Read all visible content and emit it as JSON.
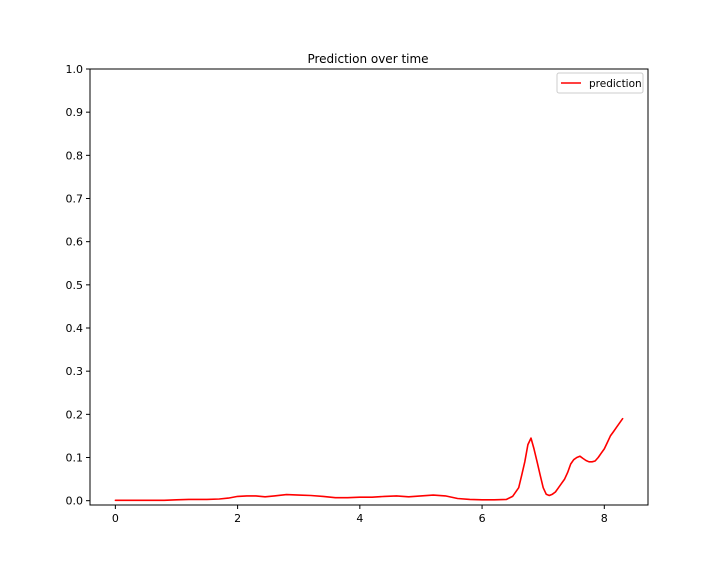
{
  "chart_data": {
    "type": "line",
    "title": "Prediction over time",
    "xlabel": "",
    "ylabel": "",
    "xlim": [
      -0.415,
      8.715
    ],
    "ylim": [
      -0.01,
      1.0
    ],
    "xticks": [
      0,
      2,
      4,
      6,
      8
    ],
    "yticks": [
      0.0,
      0.1,
      0.2,
      0.3,
      0.4,
      0.5,
      0.6,
      0.7,
      0.8,
      0.9,
      1.0
    ],
    "xtick_labels": [
      "0",
      "2",
      "4",
      "6",
      "8"
    ],
    "ytick_labels": [
      "0.0",
      "0.1",
      "0.2",
      "0.3",
      "0.4",
      "0.5",
      "0.6",
      "0.7",
      "0.8",
      "0.9",
      "1.0"
    ],
    "grid": false,
    "legend": {
      "position": "top-right"
    },
    "series": [
      {
        "name": "prediction",
        "color": "#ff0000",
        "x": [
          0,
          0.4,
          0.8,
          1.0,
          1.2,
          1.5,
          1.7,
          1.85,
          2.0,
          2.15,
          2.3,
          2.45,
          2.6,
          2.8,
          3.0,
          3.2,
          3.4,
          3.6,
          3.8,
          4.0,
          4.2,
          4.4,
          4.6,
          4.8,
          5.0,
          5.2,
          5.4,
          5.6,
          5.8,
          6.0,
          6.2,
          6.4,
          6.5,
          6.6,
          6.65,
          6.7,
          6.75,
          6.8,
          6.85,
          6.9,
          6.95,
          7.0,
          7.05,
          7.1,
          7.15,
          7.2,
          7.25,
          7.3,
          7.35,
          7.4,
          7.45,
          7.5,
          7.55,
          7.6,
          7.65,
          7.7,
          7.75,
          7.8,
          7.85,
          7.9,
          7.95,
          8.0,
          8.05,
          8.1,
          8.15,
          8.2,
          8.3
        ],
        "y": [
          0.001,
          0.001,
          0.001,
          0.002,
          0.003,
          0.003,
          0.004,
          0.006,
          0.01,
          0.011,
          0.011,
          0.009,
          0.011,
          0.014,
          0.013,
          0.012,
          0.01,
          0.007,
          0.007,
          0.008,
          0.008,
          0.01,
          0.011,
          0.009,
          0.011,
          0.013,
          0.011,
          0.005,
          0.003,
          0.002,
          0.002,
          0.003,
          0.01,
          0.03,
          0.06,
          0.09,
          0.13,
          0.145,
          0.12,
          0.09,
          0.06,
          0.03,
          0.015,
          0.012,
          0.015,
          0.02,
          0.03,
          0.04,
          0.05,
          0.065,
          0.085,
          0.095,
          0.1,
          0.103,
          0.098,
          0.093,
          0.09,
          0.09,
          0.092,
          0.1,
          0.11,
          0.12,
          0.135,
          0.15,
          0.16,
          0.17,
          0.19
        ]
      }
    ]
  }
}
